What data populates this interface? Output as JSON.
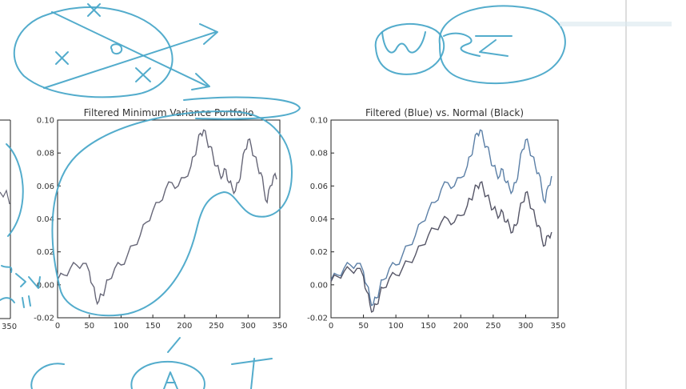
{
  "chart_data": [
    {
      "type": "line",
      "title": "Filtered Minimum Variance Portfolio",
      "xlabel": "",
      "ylabel": "",
      "xlim": [
        0,
        350
      ],
      "ylim": [
        -0.02,
        0.1
      ],
      "xticks": [
        "0",
        "50",
        "100",
        "150",
        "200",
        "250",
        "300",
        "350"
      ],
      "yticks": [
        "-0.02",
        "0.00",
        "0.02",
        "0.04",
        "0.06",
        "0.08",
        "0.10"
      ],
      "series": [
        {
          "color": "#666677",
          "x": [
            0,
            10,
            20,
            30,
            40,
            50,
            55,
            60,
            65,
            70,
            75,
            80,
            90,
            100,
            110,
            120,
            130,
            140,
            150,
            160,
            170,
            180,
            190,
            200,
            210,
            215,
            220,
            225,
            230,
            235,
            240,
            245,
            250,
            255,
            260,
            265,
            270,
            275,
            280,
            285,
            290,
            295,
            300,
            305,
            310,
            315,
            320,
            325,
            330,
            335,
            340,
            345
          ],
          "y": [
            0.003,
            0.006,
            0.01,
            0.012,
            0.013,
            0.008,
            0.0,
            -0.008,
            -0.01,
            -0.006,
            -0.002,
            0.003,
            0.01,
            0.012,
            0.018,
            0.024,
            0.03,
            0.038,
            0.045,
            0.05,
            0.058,
            0.062,
            0.06,
            0.065,
            0.072,
            0.078,
            0.085,
            0.092,
            0.094,
            0.088,
            0.084,
            0.078,
            0.072,
            0.068,
            0.066,
            0.07,
            0.062,
            0.059,
            0.057,
            0.062,
            0.072,
            0.082,
            0.088,
            0.084,
            0.078,
            0.072,
            0.068,
            0.058,
            0.05,
            0.06,
            0.066,
            0.064
          ]
        }
      ]
    },
    {
      "type": "line",
      "title": "Filtered (Blue) vs. Normal (Black)",
      "xlabel": "",
      "ylabel": "",
      "xlim": [
        0,
        350
      ],
      "ylim": [
        -0.02,
        0.1
      ],
      "xticks": [
        "0",
        "50",
        "100",
        "150",
        "200",
        "250",
        "300",
        "350"
      ],
      "yticks": [
        "-0.02",
        "0.00",
        "0.02",
        "0.04",
        "0.06",
        "0.08",
        "0.10"
      ],
      "series": [
        {
          "color": "#5b7fa6",
          "x": [
            0,
            10,
            20,
            30,
            40,
            50,
            55,
            60,
            65,
            70,
            75,
            80,
            90,
            100,
            110,
            120,
            130,
            140,
            150,
            160,
            170,
            180,
            190,
            200,
            210,
            215,
            220,
            225,
            230,
            235,
            240,
            245,
            250,
            255,
            260,
            265,
            270,
            275,
            280,
            285,
            290,
            295,
            300,
            305,
            310,
            315,
            320,
            325,
            330,
            335,
            340
          ],
          "y": [
            0.003,
            0.006,
            0.01,
            0.012,
            0.013,
            0.008,
            0.0,
            -0.008,
            -0.012,
            -0.008,
            -0.002,
            0.003,
            0.01,
            0.012,
            0.018,
            0.024,
            0.03,
            0.038,
            0.045,
            0.05,
            0.058,
            0.062,
            0.06,
            0.065,
            0.072,
            0.078,
            0.085,
            0.092,
            0.094,
            0.088,
            0.084,
            0.078,
            0.072,
            0.068,
            0.066,
            0.07,
            0.062,
            0.059,
            0.057,
            0.062,
            0.072,
            0.082,
            0.088,
            0.084,
            0.078,
            0.072,
            0.068,
            0.058,
            0.05,
            0.06,
            0.066
          ]
        },
        {
          "color": "#555566",
          "x": [
            0,
            10,
            20,
            30,
            40,
            50,
            55,
            60,
            65,
            70,
            75,
            80,
            90,
            100,
            110,
            120,
            130,
            140,
            150,
            160,
            170,
            180,
            190,
            200,
            210,
            215,
            220,
            225,
            230,
            235,
            240,
            245,
            250,
            255,
            260,
            265,
            270,
            275,
            280,
            285,
            290,
            295,
            300,
            305,
            310,
            315,
            320,
            325,
            330,
            335,
            340
          ],
          "y": [
            0.002,
            0.005,
            0.008,
            0.009,
            0.01,
            0.005,
            -0.004,
            -0.012,
            -0.016,
            -0.012,
            -0.006,
            -0.002,
            0.004,
            0.006,
            0.01,
            0.014,
            0.018,
            0.024,
            0.03,
            0.034,
            0.038,
            0.04,
            0.038,
            0.042,
            0.048,
            0.052,
            0.056,
            0.06,
            0.062,
            0.058,
            0.054,
            0.05,
            0.046,
            0.044,
            0.042,
            0.044,
            0.038,
            0.036,
            0.032,
            0.036,
            0.044,
            0.05,
            0.056,
            0.052,
            0.046,
            0.04,
            0.036,
            0.028,
            0.024,
            0.03,
            0.032
          ]
        }
      ]
    }
  ],
  "colors": {
    "ink": "#4aa8c9",
    "axes": "#222222",
    "text": "#333333"
  }
}
